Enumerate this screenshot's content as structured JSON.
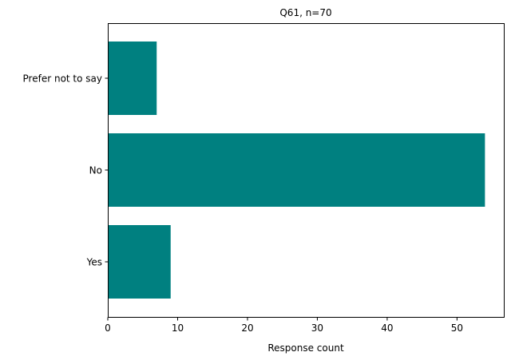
{
  "chart_data": {
    "type": "bar",
    "orientation": "horizontal",
    "title": "Q61, n=70",
    "xlabel": "Response count",
    "ylabel": "",
    "categories": [
      "Prefer not to say",
      "No",
      "Yes"
    ],
    "values": [
      7,
      54,
      9
    ],
    "xlim": [
      0,
      56.7
    ],
    "xticks": [
      0,
      10,
      20,
      30,
      40,
      50
    ],
    "grid": false,
    "legend": "none",
    "bar_color": "#008080"
  }
}
